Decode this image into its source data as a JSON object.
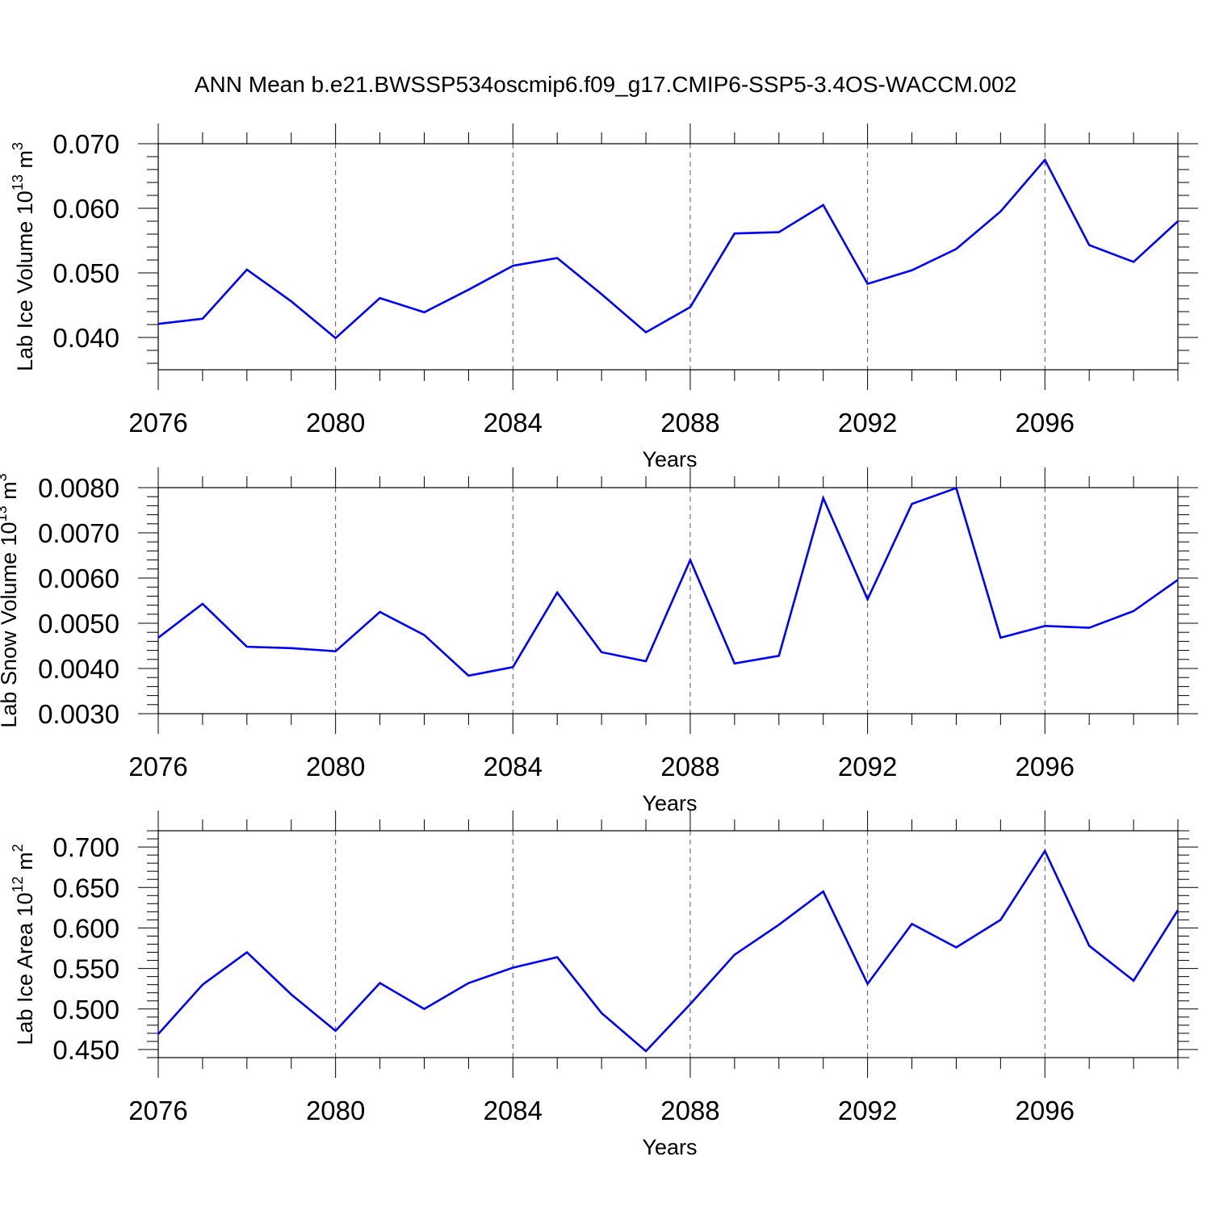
{
  "title": "ANN Mean b.e21.BWSSP534oscmip6.f09_g17.CMIP6-SSP5-3.4OS-WACCM.002",
  "colors": {
    "series": "#0000ff",
    "axis": "#000000",
    "grid": "#555555"
  },
  "chart_data": [
    {
      "type": "line",
      "ylabel": {
        "main": "Lab Ice Volume 10",
        "sup": "13",
        "unit": " m",
        "unit_sup": "3"
      },
      "xlabel": "Years",
      "xlim": [
        2076,
        2099
      ],
      "ylim": [
        0.035,
        0.07
      ],
      "xticks": [
        "2076",
        "2080",
        "2084",
        "2088",
        "2092",
        "2096"
      ],
      "yticks": [
        "0.040",
        "0.050",
        "0.060",
        "0.070"
      ],
      "grid": "vertical-dashed",
      "series": [
        {
          "name": "Lab Ice Volume",
          "x": [
            2076,
            2077,
            2078,
            2079,
            2080,
            2081,
            2082,
            2083,
            2084,
            2085,
            2086,
            2087,
            2088,
            2089,
            2090,
            2091,
            2092,
            2093,
            2094,
            2095,
            2096,
            2097,
            2098,
            2099
          ],
          "values": [
            0.0421,
            0.0429,
            0.0505,
            0.0456,
            0.0399,
            0.0461,
            0.0439,
            0.0474,
            0.0511,
            0.0523,
            0.0467,
            0.0408,
            0.0447,
            0.0561,
            0.0563,
            0.0605,
            0.0483,
            0.0504,
            0.0537,
            0.0595,
            0.0675,
            0.0543,
            0.0517,
            0.058
          ]
        }
      ]
    },
    {
      "type": "line",
      "ylabel": {
        "main": "Lab Snow Volume 10",
        "sup": "13",
        "unit": " m",
        "unit_sup": "3"
      },
      "xlabel": "Years",
      "xlim": [
        2076,
        2099
      ],
      "ylim": [
        0.003,
        0.008
      ],
      "xticks": [
        "2076",
        "2080",
        "2084",
        "2088",
        "2092",
        "2096"
      ],
      "yticks": [
        "0.0030",
        "0.0040",
        "0.0050",
        "0.0060",
        "0.0070",
        "0.0080"
      ],
      "grid": "vertical-dashed",
      "series": [
        {
          "name": "Lab Snow Volume",
          "x": [
            2076,
            2077,
            2078,
            2079,
            2080,
            2081,
            2082,
            2083,
            2084,
            2085,
            2086,
            2087,
            2088,
            2089,
            2090,
            2091,
            2092,
            2093,
            2094,
            2095,
            2096,
            2097,
            2098,
            2099
          ],
          "values": [
            0.00468,
            0.00543,
            0.00448,
            0.00445,
            0.00438,
            0.00525,
            0.00474,
            0.00384,
            0.00403,
            0.00568,
            0.00436,
            0.00416,
            0.0064,
            0.00411,
            0.00428,
            0.00777,
            0.00553,
            0.00764,
            0.00799,
            0.00468,
            0.00494,
            0.0049,
            0.00527,
            0.00596
          ]
        }
      ]
    },
    {
      "type": "line",
      "ylabel": {
        "main": "Lab Ice Area 10",
        "sup": "12",
        "unit": " m",
        "unit_sup": "2"
      },
      "xlabel": "Years",
      "xlim": [
        2076,
        2099
      ],
      "ylim": [
        0.44,
        0.72
      ],
      "xticks": [
        "2076",
        "2080",
        "2084",
        "2088",
        "2092",
        "2096"
      ],
      "yticks": [
        "0.450",
        "0.500",
        "0.550",
        "0.600",
        "0.650",
        "0.700"
      ],
      "grid": "vertical-dashed",
      "series": [
        {
          "name": "Lab Ice Area",
          "x": [
            2076,
            2077,
            2078,
            2079,
            2080,
            2081,
            2082,
            2083,
            2084,
            2085,
            2086,
            2087,
            2088,
            2089,
            2090,
            2091,
            2092,
            2093,
            2094,
            2095,
            2096,
            2097,
            2098,
            2099
          ],
          "values": [
            0.469,
            0.53,
            0.57,
            0.518,
            0.473,
            0.532,
            0.5,
            0.532,
            0.551,
            0.564,
            0.495,
            0.448,
            0.506,
            0.567,
            0.604,
            0.645,
            0.531,
            0.605,
            0.576,
            0.61,
            0.695,
            0.578,
            0.535,
            0.622
          ]
        }
      ]
    }
  ]
}
